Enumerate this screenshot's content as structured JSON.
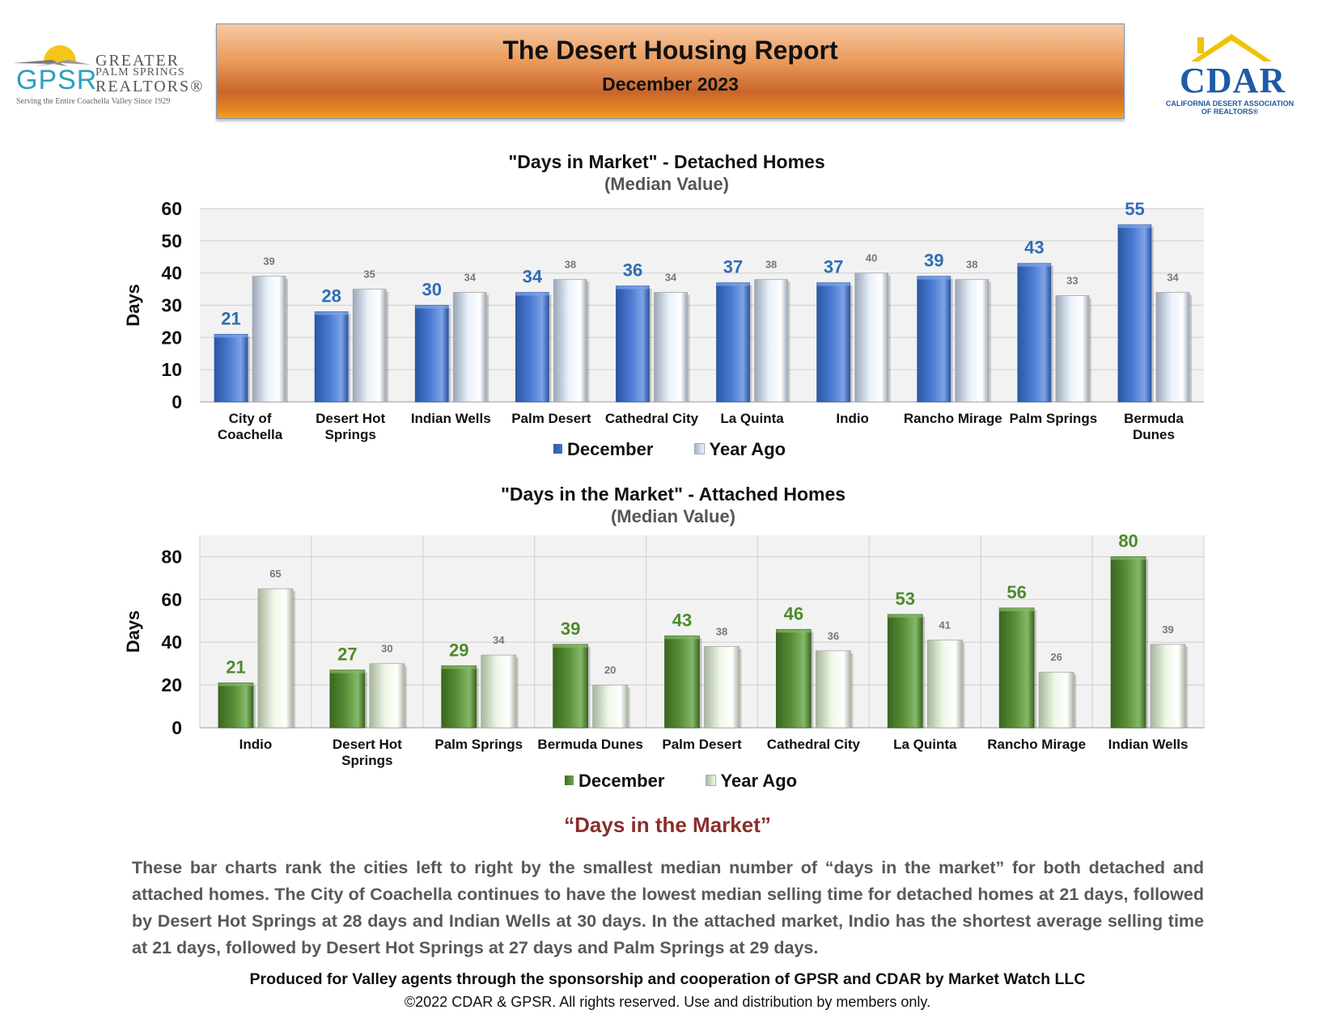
{
  "logos": {
    "gpsr": {
      "letters": "GPSR",
      "greater": "GREATER",
      "palm_springs": "PALM SPRINGS",
      "realtors": "REALTORS®",
      "tagline": "Serving the Entire Coachella Valley Since 1929"
    },
    "cdar": {
      "word": "CDAR",
      "sub1": "CALIFORNIA DESERT ASSOCIATION",
      "sub2": "OF REALTORS®"
    }
  },
  "header": {
    "title": "The Desert Housing Report",
    "subtitle": "December 2023"
  },
  "colors": {
    "detached_current": "#4472c4",
    "attached_current": "#548235",
    "detached_label": "#2f6db5",
    "attached_label": "#4e8a2b",
    "previous_label": "#777777",
    "heading_red": "#8b2e2b"
  },
  "chart_data": [
    {
      "type": "bar",
      "title": "\"Days in Market\" - Detached Homes",
      "subtitle": "(Median Value)",
      "xlabel": "",
      "ylabel": "Days",
      "ylim": [
        0,
        60
      ],
      "yticks": [
        0,
        10,
        20,
        30,
        40,
        50,
        60
      ],
      "grid": true,
      "categories": [
        [
          "City of",
          "Coachella"
        ],
        [
          "Desert Hot",
          "Springs"
        ],
        [
          "Indian Wells"
        ],
        [
          "Palm Desert"
        ],
        [
          "Cathedral City"
        ],
        [
          "La Quinta"
        ],
        [
          "Indio"
        ],
        [
          "Rancho Mirage"
        ],
        [
          "Palm Springs"
        ],
        [
          "Bermuda",
          "Dunes"
        ]
      ],
      "series": [
        {
          "name": "December",
          "values": [
            21,
            28,
            30,
            34,
            36,
            37,
            37,
            39,
            43,
            55
          ]
        },
        {
          "name": "Year Ago",
          "values": [
            39,
            35,
            34,
            38,
            34,
            38,
            40,
            38,
            33,
            34
          ]
        }
      ],
      "legend": "bottom-center"
    },
    {
      "type": "bar",
      "title": "\"Days in the Market\" - Attached Homes",
      "subtitle": "(Median Value)",
      "xlabel": "",
      "ylabel": "Days",
      "ylim": [
        0,
        90
      ],
      "yticks": [
        0,
        20,
        40,
        60,
        80
      ],
      "grid": true,
      "categories": [
        [
          "Indio"
        ],
        [
          "Desert Hot",
          "Springs"
        ],
        [
          "Palm Springs"
        ],
        [
          "Bermuda Dunes"
        ],
        [
          "Palm Desert"
        ],
        [
          "Cathedral City"
        ],
        [
          "La Quinta"
        ],
        [
          "Rancho Mirage"
        ],
        [
          "Indian Wells"
        ]
      ],
      "series": [
        {
          "name": "December",
          "values": [
            21,
            27,
            29,
            39,
            43,
            46,
            53,
            56,
            80
          ]
        },
        {
          "name": "Year Ago",
          "values": [
            65,
            30,
            34,
            20,
            38,
            36,
            41,
            26,
            39
          ]
        }
      ],
      "legend": "bottom-center"
    }
  ],
  "section": {
    "heading": "“Days in the Market”",
    "paragraph": "These bar charts rank the cities left to right by the smallest median number of “days in the market” for both detached and attached homes. The City of Coachella continues to have the lowest median selling time for detached homes at 21 days, followed by Desert Hot Springs at 28 days and Indian Wells at 30 days. In the attached market, Indio has the shortest average selling time at 21 days, followed by Desert Hot Springs at 27 days and Palm Springs at 29 days."
  },
  "footer": {
    "line1": "Produced for Valley agents through the sponsorship and cooperation of GPSR and CDAR by Market Watch LLC",
    "line2": "©2022 CDAR & GPSR.  All rights reserved.  Use and distribution by members only."
  }
}
